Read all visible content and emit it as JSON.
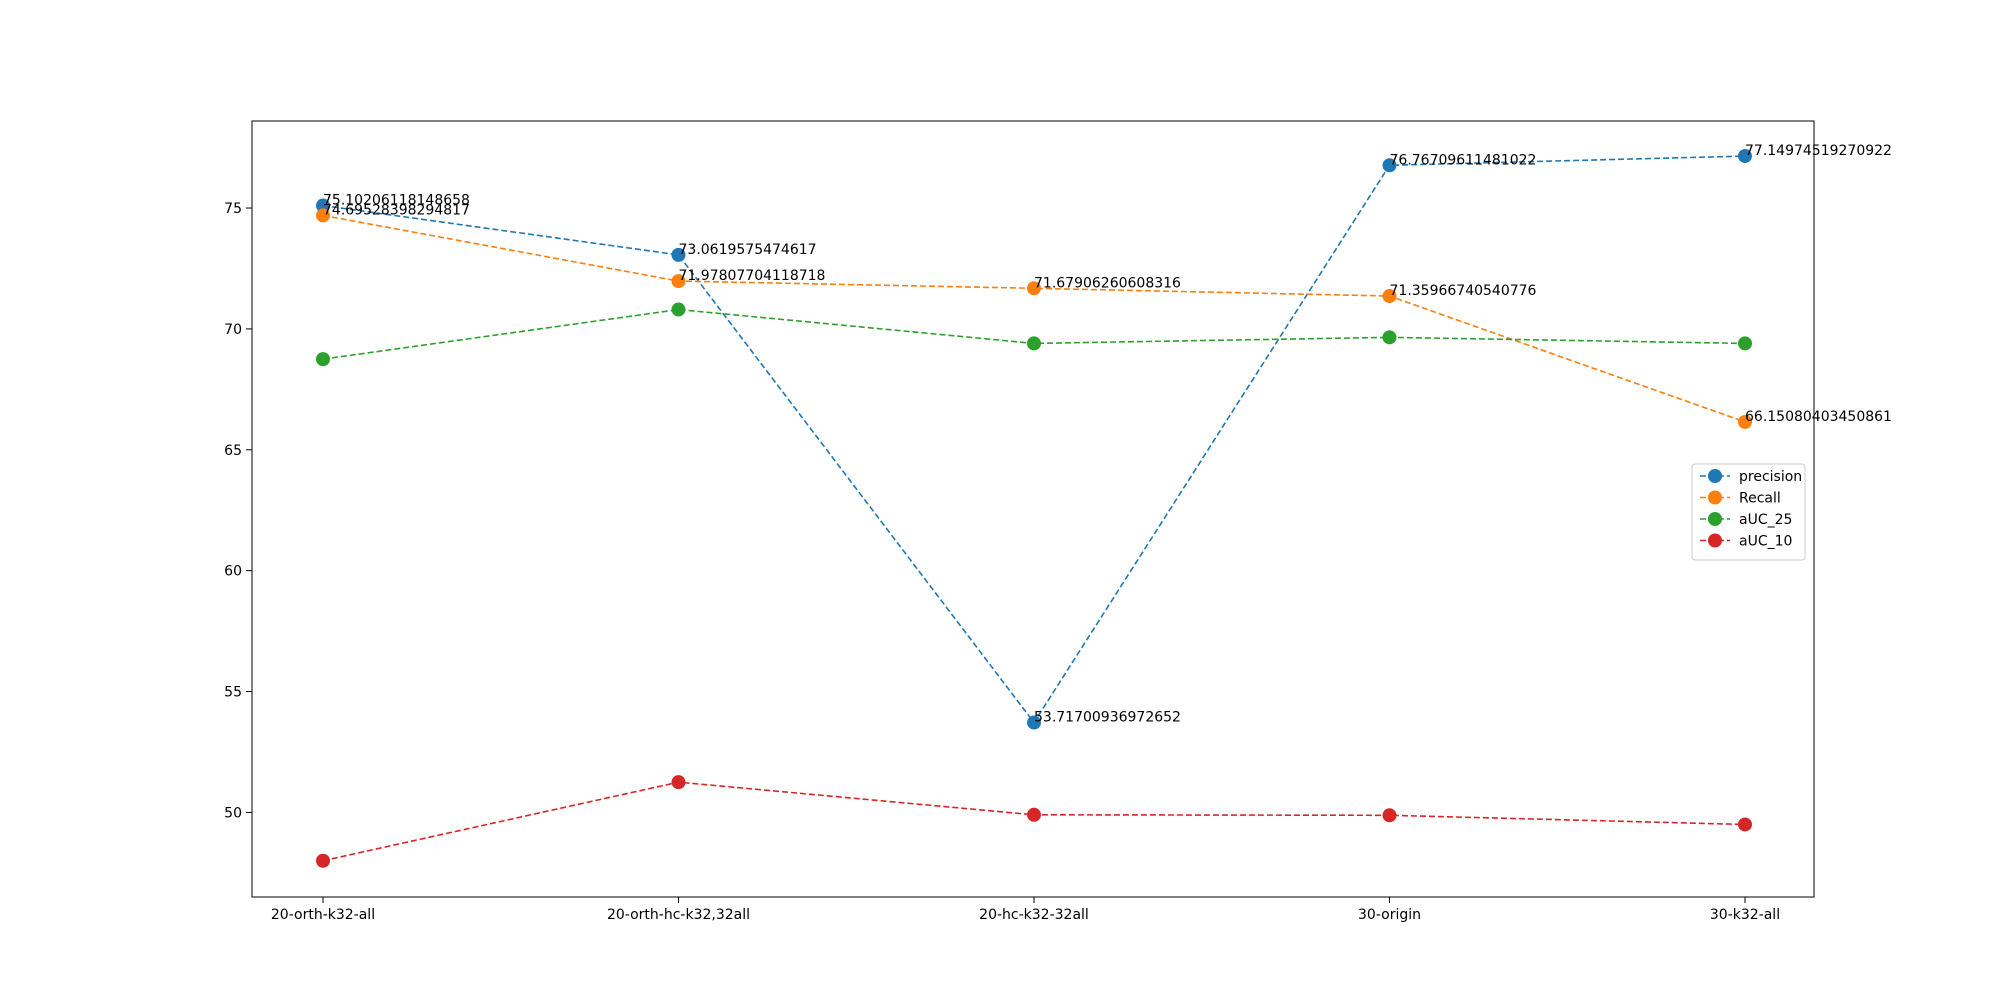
{
  "chart_data": {
    "type": "line",
    "categories": [
      "20-orth-k32-all",
      "20-orth-hc-k32,32all",
      "20-hc-k32-32all",
      "30-origin",
      "30-k32-all"
    ],
    "series": [
      {
        "name": "precision",
        "color": "#1f77b4",
        "values": [
          75.10206118148658,
          73.0619575474617,
          53.71700936972652,
          76.76709611481022,
          77.14974519270922
        ],
        "labels": [
          "75.10206118148658",
          "73.0619575474617",
          "53.71700936972652",
          "76.76709611481022",
          "77.14974519270922"
        ]
      },
      {
        "name": "Recall",
        "color": "#ff7f0e",
        "values": [
          74.69528398294817,
          71.97807704118718,
          71.67906260608316,
          71.35966740540776,
          66.15080403450861
        ],
        "labels": [
          "74.69528398294817",
          "71.97807704118718",
          "71.67906260608316",
          "71.35966740540776",
          "66.15080403450861"
        ]
      },
      {
        "name": "aUC_25",
        "color": "#2ca02c",
        "values": [
          68.75,
          70.8,
          69.4,
          69.65,
          69.4
        ]
      },
      {
        "name": "aUC_10",
        "color": "#d62728",
        "values": [
          48.0,
          51.25,
          49.9,
          49.88,
          49.5
        ]
      }
    ],
    "y_ticks": [
      "50",
      "55",
      "60",
      "65",
      "70",
      "75"
    ],
    "ylim": [
      46.5,
      78.6
    ],
    "grid": false,
    "legend": "center-right",
    "line_style": "dashed",
    "marker": "circle"
  }
}
